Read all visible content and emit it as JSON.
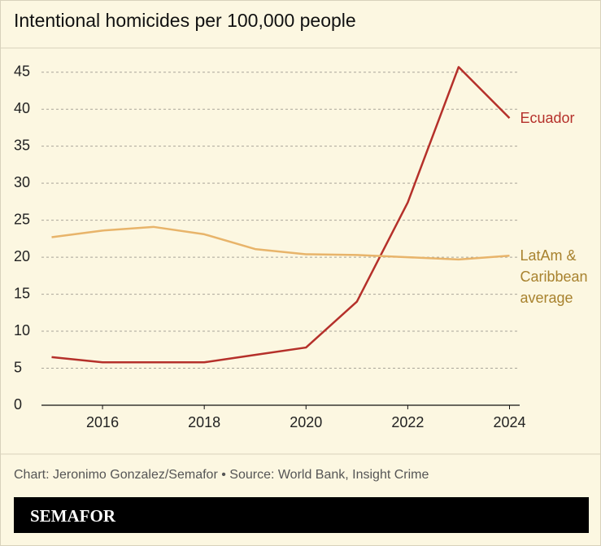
{
  "chart_data": {
    "type": "line",
    "title": "Intentional homicides per 100,000 people",
    "x": [
      2015,
      2016,
      2017,
      2018,
      2019,
      2020,
      2021,
      2022,
      2023,
      2024
    ],
    "xlim": [
      2014.8,
      2024.2
    ],
    "xticks": [
      2016,
      2018,
      2020,
      2022,
      2024
    ],
    "ylim": [
      0,
      47.5
    ],
    "yticks": [
      0,
      5,
      10,
      15,
      20,
      25,
      30,
      35,
      40,
      45
    ],
    "grid": true,
    "series": [
      {
        "name": "Ecuador",
        "color": "#b5302a",
        "label_color": "#b5302a",
        "values": [
          6.5,
          5.8,
          5.8,
          5.8,
          6.8,
          7.8,
          14.0,
          27.4,
          45.7,
          38.8
        ]
      },
      {
        "name": "LatAm & Caribbean average",
        "color": "#e8b46a",
        "label_color": "#a8822e",
        "values": [
          22.7,
          23.6,
          24.1,
          23.1,
          21.1,
          20.4,
          20.3,
          20.0,
          19.7,
          20.2
        ]
      }
    ]
  },
  "footer": {
    "source": "Chart: Jeronimo Gonzalez/Semafor • Source: World Bank, Insight Crime",
    "brand": "SEMAFOR"
  }
}
